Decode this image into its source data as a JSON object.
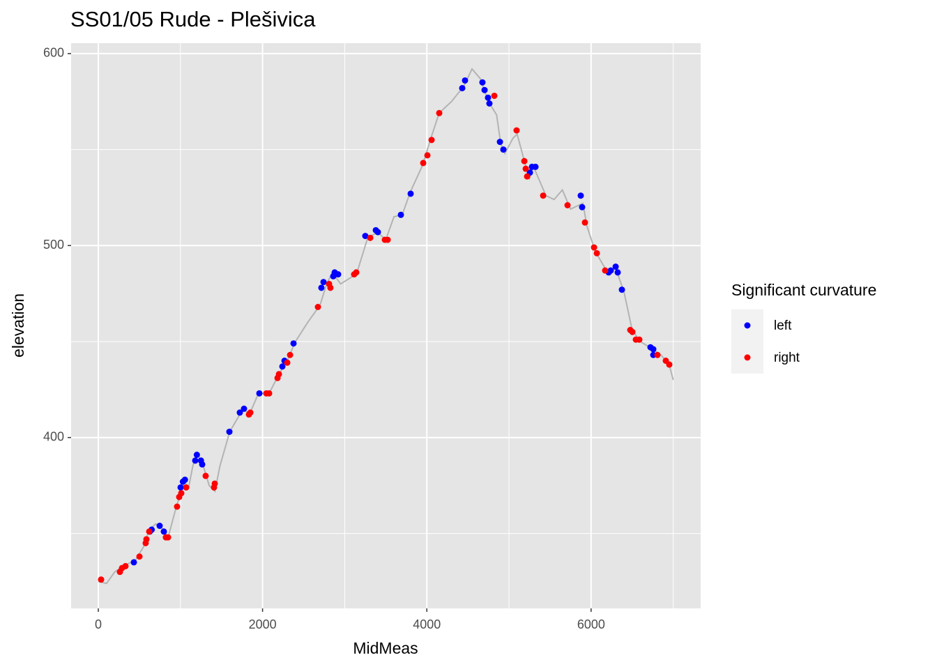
{
  "chart_data": {
    "type": "scatter",
    "title": "SS01/05 Rude - Plešivica",
    "x_label": "MidMeas",
    "y_label": "elevation",
    "legend_title": "Significant curvature",
    "legend_position": "right",
    "xlim": [
      -331,
      7334
    ],
    "ylim": [
      311,
      605.4
    ],
    "xticks": [
      0,
      2000,
      4000,
      6000
    ],
    "yticks": [
      400,
      500,
      600
    ],
    "xminor": [
      1000,
      3000,
      5000,
      7000
    ],
    "yminor": [
      350,
      450,
      550
    ],
    "grid": true,
    "panel_color": "#e5e5e5",
    "line": {
      "color": "#b3b3b3",
      "x": [
        0,
        100,
        200,
        300,
        450,
        550,
        620,
        700,
        800,
        850,
        950,
        1050,
        1100,
        1150,
        1200,
        1280,
        1350,
        1420,
        1480,
        1600,
        1750,
        1850,
        1950,
        2080,
        2200,
        2300,
        2400,
        2550,
        2700,
        2780,
        2850,
        2950,
        3100,
        3150,
        3280,
        3400,
        3500,
        3600,
        3700,
        3800,
        3950,
        4050,
        4150,
        4300,
        4450,
        4550,
        4650,
        4750,
        4850,
        4900,
        4950,
        5050,
        5100,
        5200,
        5250,
        5300,
        5450,
        5550,
        5650,
        5750,
        5900,
        5950,
        6050,
        6200,
        6300,
        6400,
        6500,
        6600,
        6750,
        6850,
        6950,
        7000
      ],
      "y": [
        325,
        324,
        330,
        333,
        336,
        343,
        352,
        355,
        352,
        348,
        364,
        377,
        374,
        385,
        392,
        385,
        375,
        372,
        385,
        403,
        414,
        413,
        423,
        423,
        433,
        440,
        450,
        460,
        469,
        480,
        486,
        480,
        484,
        486,
        504,
        507,
        503,
        515,
        516,
        528,
        542,
        556,
        569,
        575,
        583,
        592,
        587,
        575,
        568,
        553,
        548,
        556,
        558,
        542,
        535,
        541,
        526,
        524,
        529,
        519,
        522,
        510,
        497,
        486,
        488,
        476,
        456,
        450,
        446,
        443,
        438,
        430
      ]
    },
    "series": [
      {
        "name": "left",
        "color": "#0000ff",
        "x": [
          433,
          628,
          650,
          747,
          798,
          1002,
          1030,
          1055,
          1180,
          1200,
          1250,
          1265,
          1596,
          1723,
          1774,
          1961,
          2241,
          2267,
          2377,
          2716,
          2742,
          2861,
          2878,
          2920,
          3251,
          3379,
          3404,
          3684,
          3803,
          4431,
          4465,
          4677,
          4703,
          4745,
          4762,
          4890,
          4932,
          5255,
          5280,
          5323,
          5874,
          5891,
          6214,
          6239,
          6299,
          6324,
          6375,
          6723,
          6757,
          6757
        ],
        "y": [
          335,
          351,
          352,
          354,
          351,
          374,
          377,
          378,
          388,
          391,
          388,
          386,
          403,
          413,
          415,
          423,
          437,
          440,
          449,
          478,
          481,
          484,
          486,
          485,
          505,
          508,
          507,
          516,
          527,
          582,
          586,
          585,
          581,
          577,
          574,
          554,
          550,
          538,
          541,
          541,
          526,
          520,
          486,
          487,
          489,
          486,
          477,
          447,
          446,
          443
        ]
      },
      {
        "name": "right",
        "color": "#ff0000",
        "x": [
          34,
          263,
          289,
          331,
          501,
          577,
          586,
          620,
          823,
          849,
          959,
          985,
          1010,
          1070,
          1307,
          1409,
          1418,
          1834,
          1851,
          2046,
          2080,
          2182,
          2199,
          2301,
          2335,
          2674,
          2810,
          2826,
          3115,
          3141,
          3311,
          3489,
          3523,
          3956,
          4007,
          4058,
          4151,
          4822,
          5093,
          5187,
          5204,
          5221,
          5416,
          5713,
          5925,
          6036,
          6070,
          6171,
          6477,
          6503,
          6545,
          6587,
          6808,
          6910,
          6952
        ],
        "y": [
          326,
          330,
          332,
          333,
          338,
          345,
          347,
          351,
          348,
          348,
          364,
          369,
          371,
          374,
          380,
          374,
          376,
          412,
          413,
          423,
          423,
          431,
          433,
          439,
          443,
          468,
          480,
          478,
          485,
          486,
          504,
          503,
          503,
          543,
          547,
          555,
          569,
          578,
          560,
          544,
          540,
          536,
          526,
          521,
          512,
          499,
          496,
          487,
          456,
          455,
          451,
          451,
          443,
          440,
          438
        ]
      }
    ]
  }
}
